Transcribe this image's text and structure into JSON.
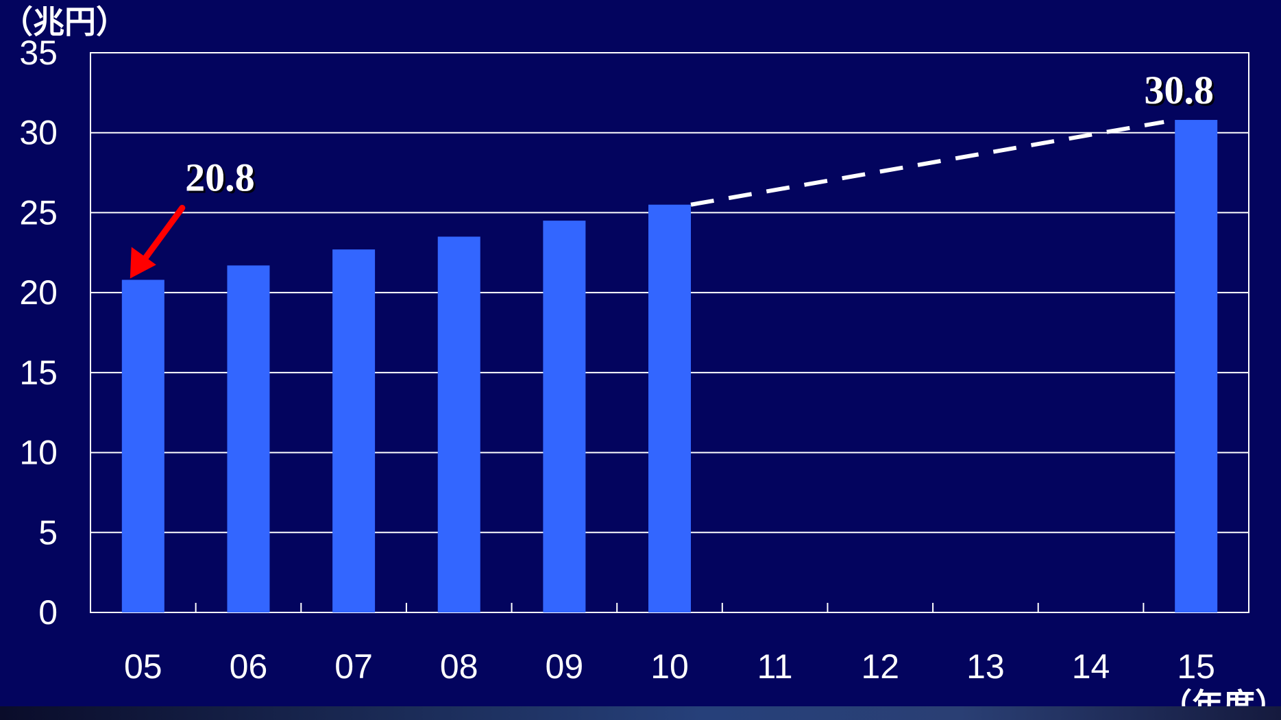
{
  "colors": {
    "background": "#03045e",
    "bar": "#3366ff",
    "grid": "#ffffff",
    "text": "#ffffff",
    "arrow": "#ff0000",
    "dashed_line": "#ffffff"
  },
  "chart_data": {
    "type": "bar",
    "title": "",
    "ylabel": "（兆円）",
    "xlabel": "（年度）",
    "ylim": [
      0,
      35
    ],
    "yticks": [
      "0",
      "5",
      "10",
      "15",
      "20",
      "25",
      "30",
      "35"
    ],
    "categories": [
      "05",
      "06",
      "07",
      "08",
      "09",
      "10",
      "11",
      "12",
      "13",
      "14",
      "15"
    ],
    "values": [
      20.8,
      21.7,
      22.7,
      23.5,
      24.5,
      25.5,
      null,
      null,
      null,
      null,
      30.8
    ],
    "grid": true,
    "annotations": [
      {
        "text": "20.8",
        "category": "05",
        "value": 20.8,
        "arrow": true
      },
      {
        "text": "30.8",
        "category": "15",
        "value": 30.8,
        "arrow": false
      }
    ],
    "trend_line": {
      "style": "dashed",
      "from": {
        "category": "10",
        "value": 25.5
      },
      "to": {
        "category": "15",
        "value": 30.8
      }
    }
  }
}
